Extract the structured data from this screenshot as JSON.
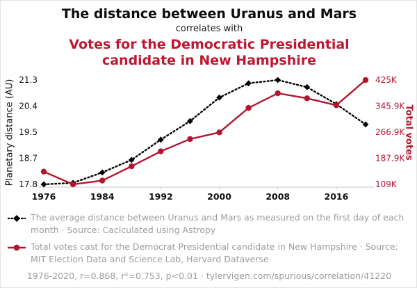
{
  "header": {
    "title_top": "The distance between Uranus and Mars",
    "connector": "correlates with",
    "title_bottom": "Votes for the Democratic Presidential candidate in New Hampshire"
  },
  "colors": {
    "distance_series": "#000000",
    "votes_series": "#b2152e",
    "title_red": "#bf1732",
    "legend_gray": "#9c9c9c",
    "axis_gray": "#c8c8c8"
  },
  "chart_data": {
    "type": "line",
    "x": [
      1976,
      1980,
      1984,
      1988,
      1992,
      1996,
      2000,
      2004,
      2008,
      2012,
      2016,
      2020
    ],
    "series": [
      {
        "name": "Average distance between Uranus and Mars (AU)",
        "axis": "left",
        "color": "#000000",
        "style": "dashed-diamond",
        "values": [
          17.8,
          17.85,
          18.2,
          18.62,
          19.3,
          19.92,
          20.71,
          21.19,
          21.3,
          21.06,
          20.49,
          19.81
        ]
      },
      {
        "name": "Total votes for the Democrat Presidential candidate in New Hampshire",
        "axis": "right",
        "color": "#b2152e",
        "style": "solid-circle",
        "values": [
          147600,
          108900,
          120400,
          163700,
          209000,
          246200,
          266300,
          340500,
          384800,
          369600,
          348500,
          424900
        ]
      }
    ],
    "left_axis": {
      "label": "Planetary distance (AU)",
      "ticks": [
        "17.8",
        "18.7",
        "19.5",
        "20.4",
        "21.3"
      ],
      "min": 17.8,
      "max": 21.3
    },
    "right_axis": {
      "label": "Total votes",
      "ticks": [
        "109K",
        "187.9K",
        "266.9K",
        "345.9K",
        "425K"
      ],
      "min": 109000,
      "max": 425000
    },
    "x_axis": {
      "ticks": [
        1976,
        1984,
        1992,
        2000,
        2008,
        2016
      ],
      "min": 1976,
      "max": 2020
    },
    "grid": false,
    "legend_position": "below"
  },
  "legend": [
    {
      "text": "The average distance between Uranus and Mars as measured on the first day of each month · Source: Caclculated using Astropy"
    },
    {
      "text": "Total votes cast for the Democrat Presidential candidate in New Hampshire · Source: MIT Election Data and Science Lab, Harvard Dataverse"
    }
  ],
  "footer": "1976-2020, r=0.868, r²=0.753, p<0.01 · tylervigen.com/spurious/correlation/41220"
}
